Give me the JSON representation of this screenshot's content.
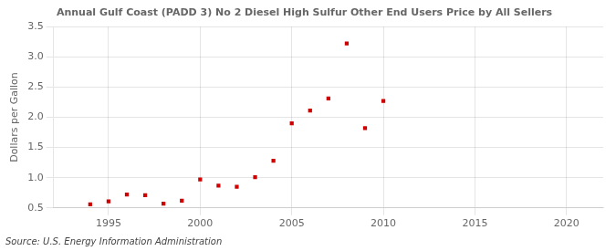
{
  "chart_data": {
    "type": "scatter",
    "title": "Annual Gulf Coast (PADD 3) No 2 Diesel High Sulfur Other End Users Price by All Sellers",
    "ylabel": "Dollars per Gallon",
    "annotations": [
      "Source: U.S. Energy Information Administration"
    ],
    "x": [
      1994,
      1995,
      1996,
      1997,
      1998,
      1999,
      2000,
      2001,
      2002,
      2003,
      2004,
      2005,
      2006,
      2007,
      2008,
      2009,
      2010
    ],
    "values": [
      0.56,
      0.61,
      0.72,
      0.71,
      0.57,
      0.62,
      0.97,
      0.87,
      0.85,
      1.01,
      1.28,
      1.9,
      2.11,
      2.31,
      3.22,
      1.82,
      2.27
    ],
    "color": "#cc0000",
    "marker": "square",
    "xlim": [
      1992,
      2022
    ],
    "xticks": [
      1995,
      2000,
      2005,
      2010,
      2015,
      2020
    ],
    "ylim": [
      0.5,
      3.5
    ],
    "yticks": [
      0.5,
      {
        "value": 1.0,
        "label": "1.0"
      },
      1.5,
      {
        "value": 2.0,
        "label": "2.0"
      },
      2.5,
      {
        "value": 3.0,
        "label": "3.0"
      },
      3.5
    ],
    "grid": true
  }
}
